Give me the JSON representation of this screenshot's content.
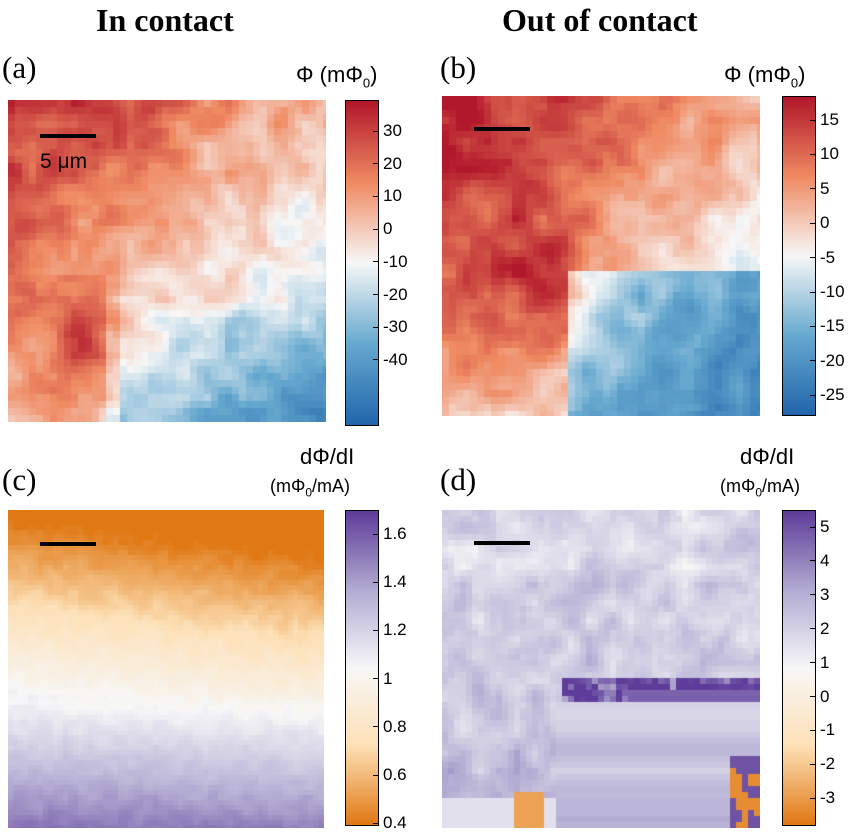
{
  "headings": {
    "left": "In contact",
    "right": "Out of contact"
  },
  "panels": [
    {
      "id": "a",
      "label": "(a)",
      "cb_title": "Φ (mΦ",
      "cb_sub": "0",
      "cb_close": ")",
      "cb_units": "",
      "ticks": [
        "30",
        "20",
        "10",
        "0",
        "-10",
        "-20",
        "-30",
        "-40"
      ],
      "colormap": "red-blue",
      "scalebar_label": "5 μm"
    },
    {
      "id": "b",
      "label": "(b)",
      "cb_title": "Φ (mΦ",
      "cb_sub": "0",
      "cb_close": ")",
      "cb_units": "",
      "ticks": [
        "15",
        "10",
        "5",
        "0",
        "-5",
        "-10",
        "-15",
        "-20",
        "-25"
      ],
      "colormap": "red-blue",
      "scalebar_label": ""
    },
    {
      "id": "c",
      "label": "(c)",
      "cb_title": "dΦ/dI",
      "cb_units_a": "(mΦ",
      "cb_units_sub": "0",
      "cb_units_b": "/mA)",
      "ticks": [
        "1.6",
        "1.4",
        "1.2",
        "1",
        "0.8",
        "0.6",
        "0.4"
      ],
      "colormap": "orange-purple",
      "scalebar_label": ""
    },
    {
      "id": "d",
      "label": "(d)",
      "cb_title": "dΦ/dI",
      "cb_units_a": "(mΦ",
      "cb_units_sub": "0",
      "cb_units_b": "/mA)",
      "ticks": [
        "5",
        "4",
        "3",
        "2",
        "1",
        "0",
        "-1",
        "-2",
        "-3"
      ],
      "colormap": "orange-purple",
      "scalebar_label": ""
    }
  ],
  "colors": {
    "red": "#b2182b",
    "white": "#f7f7f7",
    "blue": "#2166ac",
    "orange": "#e08214",
    "purple": "#542788"
  }
}
